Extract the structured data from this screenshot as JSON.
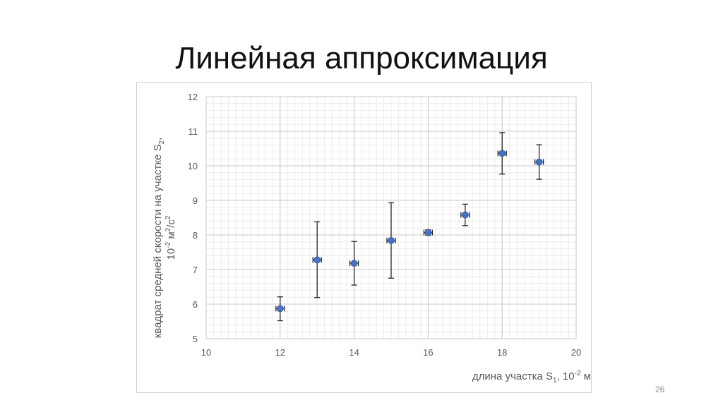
{
  "slide": {
    "title": "Линейная аппроксимация",
    "page_number": "26"
  },
  "chart_data": {
    "type": "scatter",
    "xlabel": {
      "text": "длина участка S",
      "sub": "1",
      "rest": ", 10",
      "sup": "-2",
      "unit": " м"
    },
    "ylabel": {
      "line1": {
        "text": "квадрат средней скорости на участке S",
        "sub": "2",
        "rest": ","
      },
      "line2": {
        "text": "10",
        "sup1": "-2",
        "mid": " м",
        "sup2": "2",
        "mid2": "/с",
        "sup3": "2"
      }
    },
    "xlim": [
      10,
      20
    ],
    "ylim": [
      5,
      12
    ],
    "x_ticks": [
      "10",
      "12",
      "14",
      "16",
      "18",
      "20"
    ],
    "y_ticks": [
      "5",
      "6",
      "7",
      "8",
      "9",
      "10",
      "11",
      "12"
    ],
    "grid": "major and minor",
    "marker_color": "#4472c4",
    "points": [
      {
        "x": 12,
        "y": 5.87,
        "y_err_low": 5.52,
        "y_err_high": 6.21
      },
      {
        "x": 13,
        "y": 7.28,
        "y_err_low": 6.19,
        "y_err_high": 8.38
      },
      {
        "x": 14,
        "y": 7.18,
        "y_err_low": 6.55,
        "y_err_high": 7.81
      },
      {
        "x": 15,
        "y": 7.84,
        "y_err_low": 6.75,
        "y_err_high": 8.93
      },
      {
        "x": 16,
        "y": 8.07,
        "y_err_low": 7.99,
        "y_err_high": 8.15
      },
      {
        "x": 17,
        "y": 8.58,
        "y_err_low": 8.27,
        "y_err_high": 8.89
      },
      {
        "x": 18,
        "y": 10.36,
        "y_err_low": 9.76,
        "y_err_high": 10.96
      },
      {
        "x": 19,
        "y": 10.11,
        "y_err_low": 9.61,
        "y_err_high": 10.61
      }
    ]
  }
}
